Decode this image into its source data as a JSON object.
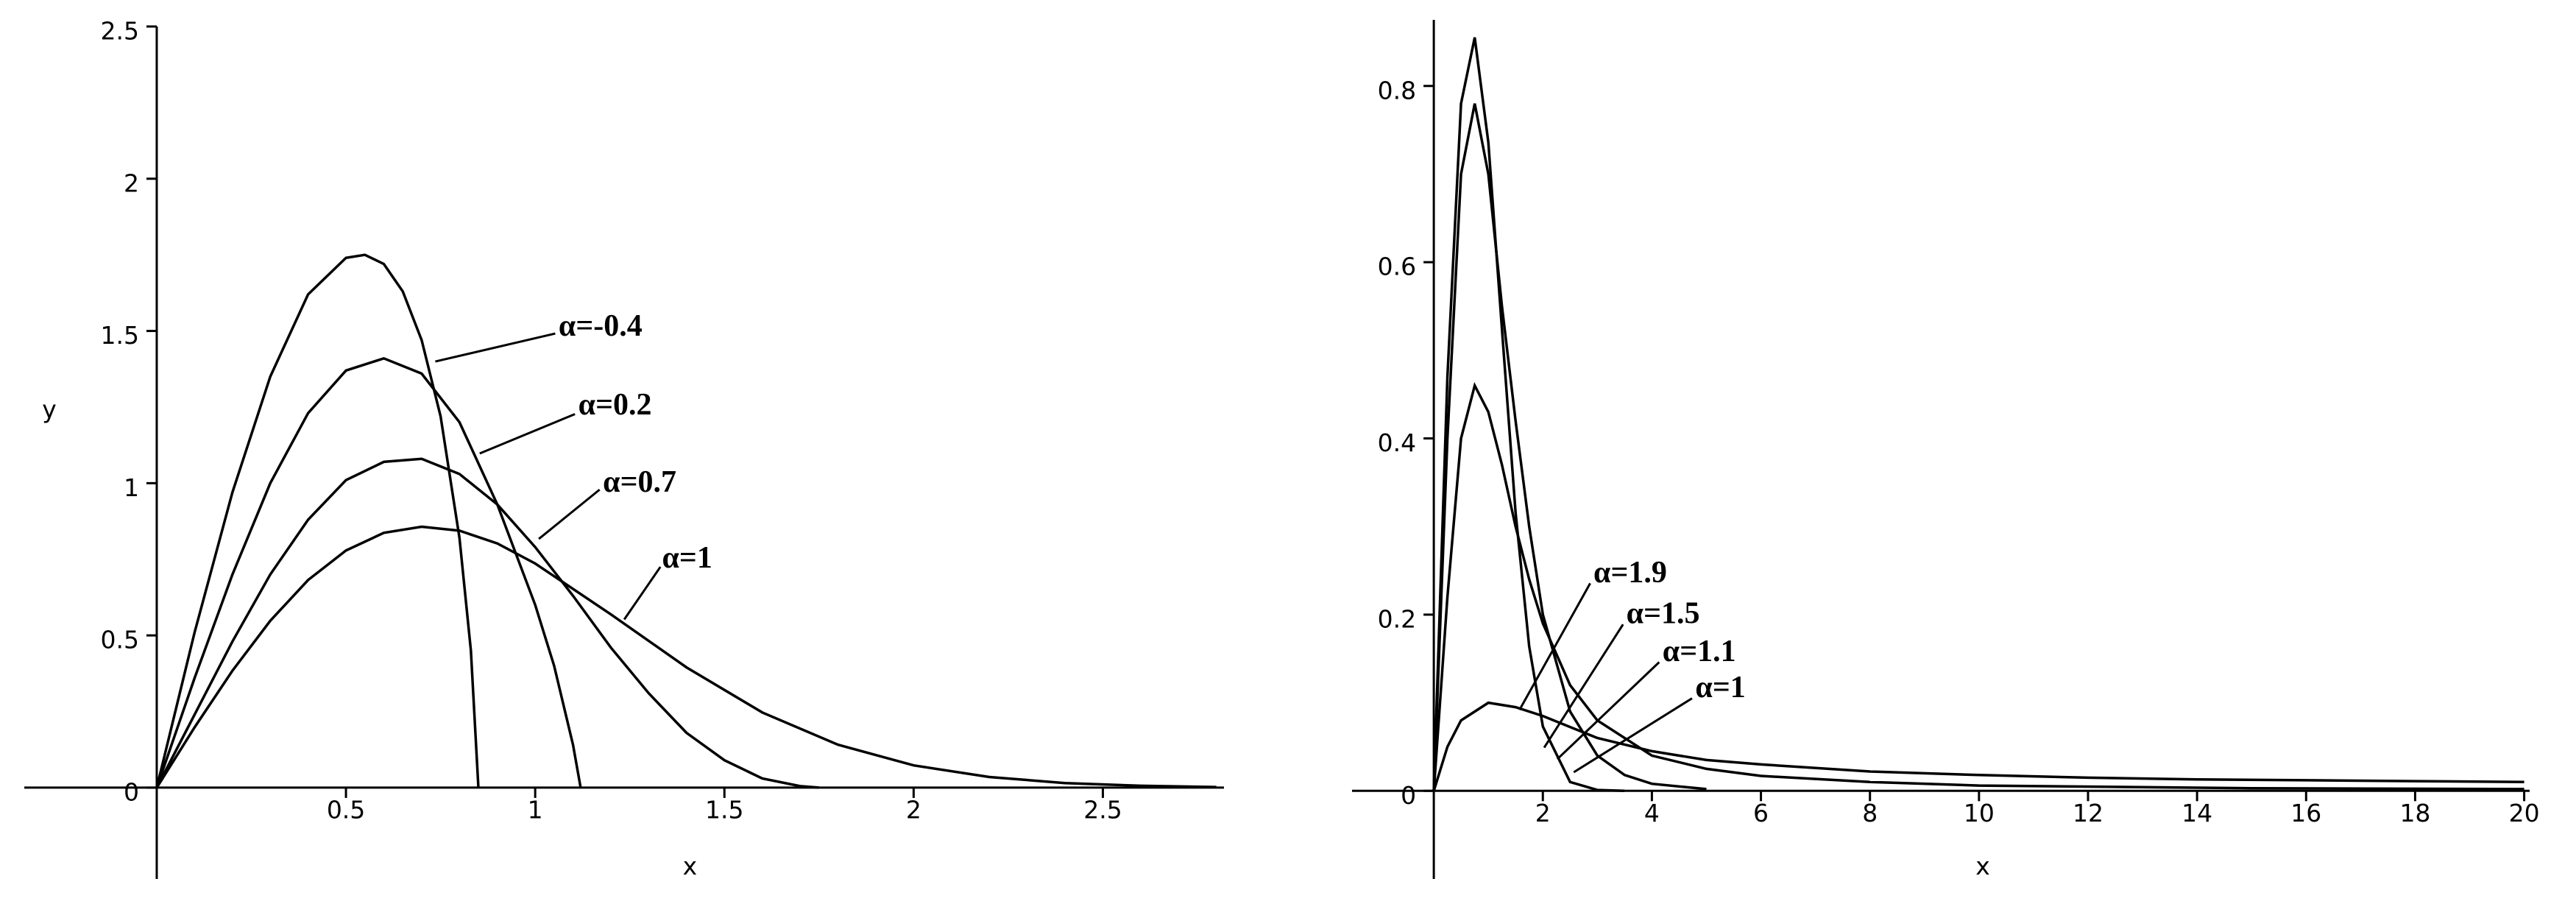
{
  "chart_data": [
    {
      "type": "line",
      "x_label": "x",
      "y_label": "y",
      "xlim": [
        -0.35,
        2.82
      ],
      "ylim": [
        -0.3,
        2.5
      ],
      "xticks": [
        0.5,
        1,
        1.5,
        2,
        2.5
      ],
      "yticks": [
        0,
        0.5,
        1,
        1.5,
        2,
        2.5
      ],
      "series": [
        {
          "name": "α=-0.4",
          "color": "#000000",
          "x": [
            0,
            0.1,
            0.2,
            0.3,
            0.4,
            0.5,
            0.55,
            0.6,
            0.65,
            0.7,
            0.75,
            0.8,
            0.83,
            0.85
          ],
          "values": [
            0,
            0.51,
            0.97,
            1.35,
            1.62,
            1.74,
            1.75,
            1.72,
            1.63,
            1.47,
            1.22,
            0.82,
            0.45,
            0
          ]
        },
        {
          "name": "α=0.2",
          "color": "#000000",
          "x": [
            0,
            0.1,
            0.2,
            0.3,
            0.4,
            0.5,
            0.6,
            0.7,
            0.8,
            0.9,
            1.0,
            1.05,
            1.1,
            1.12
          ],
          "values": [
            0,
            0.36,
            0.7,
            1.0,
            1.23,
            1.37,
            1.41,
            1.36,
            1.2,
            0.93,
            0.6,
            0.4,
            0.14,
            0
          ]
        },
        {
          "name": "α=0.7",
          "color": "#000000",
          "x": [
            0,
            0.1,
            0.2,
            0.3,
            0.4,
            0.5,
            0.6,
            0.7,
            0.8,
            0.9,
            1.0,
            1.1,
            1.2,
            1.3,
            1.4,
            1.5,
            1.6,
            1.7,
            1.75
          ],
          "values": [
            0,
            0.24,
            0.48,
            0.7,
            0.88,
            1.01,
            1.07,
            1.08,
            1.03,
            0.93,
            0.79,
            0.63,
            0.46,
            0.31,
            0.18,
            0.09,
            0.03,
            0.005,
            0
          ]
        },
        {
          "name": "α=1",
          "color": "#000000",
          "x": [
            0,
            0.1,
            0.2,
            0.3,
            0.4,
            0.5,
            0.6,
            0.7,
            0.8,
            0.9,
            1.0,
            1.2,
            1.4,
            1.6,
            1.8,
            2.0,
            2.2,
            2.4,
            2.6,
            2.8
          ],
          "values": [
            0,
            0.198,
            0.384,
            0.548,
            0.682,
            0.779,
            0.837,
            0.857,
            0.844,
            0.802,
            0.736,
            0.569,
            0.395,
            0.247,
            0.141,
            0.073,
            0.035,
            0.015,
            0.006,
            0.002
          ]
        }
      ]
    },
    {
      "type": "line",
      "x_label": "x",
      "xlim": [
        -1.5,
        20.1
      ],
      "ylim": [
        -0.1,
        0.875
      ],
      "xticks": [
        2,
        4,
        6,
        8,
        10,
        12,
        14,
        16,
        18,
        20
      ],
      "yticks": [
        0,
        0.2,
        0.4,
        0.6,
        0.8
      ],
      "series": [
        {
          "name": "α=1.9",
          "color": "#000000",
          "x": [
            0,
            0.25,
            0.5,
            1,
            1.5,
            2,
            3,
            4,
            5,
            6,
            8,
            10,
            12,
            14,
            16,
            18,
            20
          ],
          "values": [
            0,
            0.05,
            0.08,
            0.1,
            0.095,
            0.085,
            0.06,
            0.045,
            0.035,
            0.03,
            0.022,
            0.018,
            0.015,
            0.013,
            0.012,
            0.011,
            0.01
          ]
        },
        {
          "name": "α=1.5",
          "color": "#000000",
          "x": [
            0,
            0.25,
            0.5,
            0.75,
            1,
            1.25,
            1.5,
            1.75,
            2,
            2.5,
            3,
            4,
            5,
            6,
            8,
            10,
            15,
            20
          ],
          "values": [
            0,
            0.22,
            0.4,
            0.46,
            0.43,
            0.37,
            0.3,
            0.24,
            0.19,
            0.12,
            0.08,
            0.04,
            0.025,
            0.017,
            0.01,
            0.006,
            0.003,
            0.002
          ]
        },
        {
          "name": "α=1.1",
          "color": "#000000",
          "x": [
            0,
            0.25,
            0.5,
            0.75,
            1,
            1.25,
            1.5,
            1.75,
            2,
            2.5,
            3,
            3.5,
            4,
            5
          ],
          "values": [
            0,
            0.4,
            0.7,
            0.78,
            0.7,
            0.55,
            0.42,
            0.3,
            0.2,
            0.09,
            0.04,
            0.018,
            0.008,
            0.002
          ]
        },
        {
          "name": "α=1",
          "color": "#000000",
          "x": [
            0,
            0.25,
            0.5,
            0.75,
            1,
            1.25,
            1.5,
            1.75,
            2,
            2.5,
            3,
            3.5
          ],
          "values": [
            0,
            0.47,
            0.78,
            0.855,
            0.736,
            0.524,
            0.316,
            0.164,
            0.073,
            0.01,
            0.001,
            0
          ]
        }
      ]
    }
  ]
}
